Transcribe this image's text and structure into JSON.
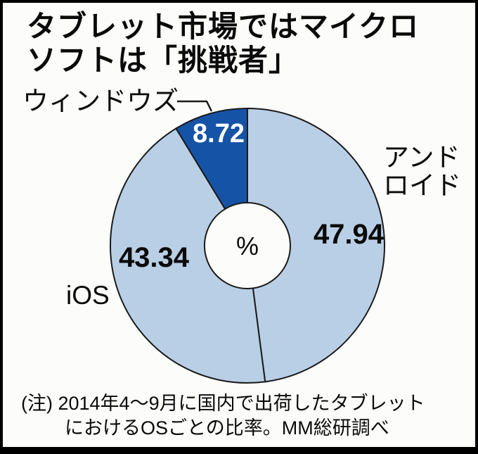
{
  "title": {
    "line1": "タブレット市場ではマイクロ",
    "line2": "ソフトは「挑戦者」"
  },
  "note": {
    "line1": "(注) 2014年4〜9月に国内で出荷したタブレット",
    "line2": "におけるOSごとの比率。MM総研調べ"
  },
  "chart_data": {
    "type": "pie",
    "donut": true,
    "start_angle_deg": 0,
    "direction": "clockwise",
    "center_label": "%",
    "unit": "%",
    "stroke_color": "#1a1a1a",
    "slices": [
      {
        "id": "android",
        "label": "アンドロイド",
        "label_lines": [
          "アンド",
          "ロイド"
        ],
        "value": 47.94,
        "value_label": "47.94",
        "color": "#b9cfe6"
      },
      {
        "id": "ios",
        "label": "iOS",
        "value": 43.34,
        "value_label": "43.34",
        "color": "#b9cfe6"
      },
      {
        "id": "windows",
        "label": "ウィンドウズ",
        "value": 8.72,
        "value_label": "8.72",
        "color": "#1553a6"
      }
    ],
    "colors": {
      "slice_light": "#b9cfe6",
      "slice_dark": "#1553a6"
    }
  }
}
